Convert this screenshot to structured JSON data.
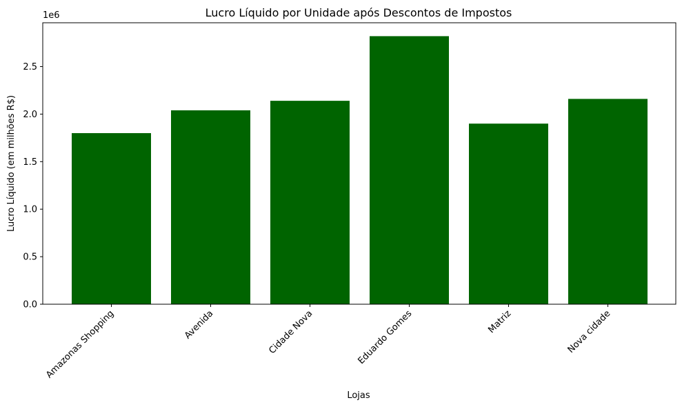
{
  "chart_data": {
    "type": "bar",
    "title": "Lucro Líquido por Unidade após Descontos de Impostos",
    "xlabel": "Lojas",
    "ylabel": "Lucro Líquido (em milhões R$)",
    "y_offset_label": "1e6",
    "categories": [
      "Amazonas Shopping",
      "Avenida",
      "Cidade Nova",
      "Eduardo Gomes",
      "Matriz",
      "Nova cidade"
    ],
    "values": [
      1800000,
      2040000,
      2140000,
      2820000,
      1900000,
      2160000
    ],
    "yticks": [
      0.0,
      0.5,
      1.0,
      1.5,
      2.0,
      2.5
    ],
    "ytick_labels": [
      "0.0",
      "0.5",
      "1.0",
      "1.5",
      "2.0",
      "2.5"
    ],
    "ytick_scale": 1000000,
    "ylim": [
      0,
      2961000
    ],
    "bar_color": "#006400",
    "grid": false
  }
}
